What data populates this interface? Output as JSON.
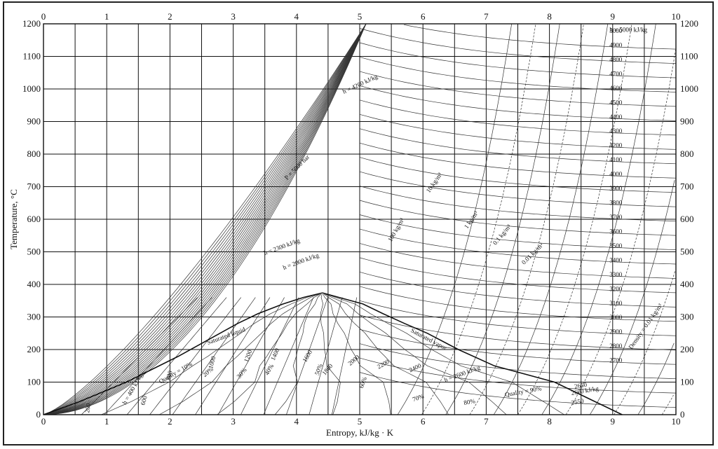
{
  "chart_data": {
    "type": "line",
    "title": "",
    "xlabel": "Entropy, kJ/kg · K",
    "ylabel": "Temperature, °C",
    "xlim": [
      0,
      10
    ],
    "ylim": [
      0,
      1200
    ],
    "x_ticks": [
      "0",
      "1",
      "2",
      "3",
      "4",
      "5",
      "6",
      "7",
      "8",
      "9",
      "10"
    ],
    "y_ticks": [
      "0",
      "100",
      "200",
      "300",
      "400",
      "500",
      "600",
      "700",
      "800",
      "900",
      "1000",
      "1100",
      "1200"
    ],
    "grid": true,
    "series": [
      {
        "name": "Saturated liquid",
        "x": [
          0.0,
          0.57,
          1.31,
          2.14,
          2.79,
          3.07,
          3.39,
          3.79,
          4.11,
          4.41
        ],
        "y": [
          0.01,
          40,
          100,
          180,
          250,
          280,
          310,
          340,
          360,
          374
        ]
      },
      {
        "name": "Saturated vapor",
        "x": [
          4.41,
          5.05,
          5.37,
          5.71,
          6.07,
          6.56,
          7.13,
          8.08,
          9.15
        ],
        "y": [
          374,
          340,
          310,
          280,
          250,
          200,
          150,
          100,
          0.01
        ]
      }
    ],
    "annotations": {
      "saturation": [
        "Saturated liquid",
        "Saturated vapor"
      ],
      "quality": [
        "Quality = 10%",
        "20%",
        "30%",
        "40%",
        "50%",
        "60%",
        "70%",
        "80%",
        "Quality = 90%"
      ],
      "enthalpy": [
        "h = 400 kJ/kg",
        "200",
        "600",
        "800",
        "1000",
        "1200",
        "1400",
        "1600",
        "1800",
        "2000",
        "2200",
        "2400",
        "h = 2600 kJ/kg",
        "2600 kJ/kg",
        "2650",
        "2550",
        "2700",
        "2800",
        "2900",
        "3000",
        "3100",
        "3200",
        "3300",
        "3400",
        "3500",
        "3600",
        "3700",
        "3800",
        "3900",
        "4000",
        "4100",
        "4200",
        "4300",
        "4400",
        "4500",
        "4600",
        "4700",
        "4800",
        "4900",
        "5000",
        "h = 5000 kJ/kg",
        "h = 4200 kJ/kg",
        "h = 2300 kJ/kg",
        "h = 2000 kJ/kg"
      ],
      "pressure": [
        "P = 5000 bar"
      ],
      "density": [
        "100 kg/m³",
        "10 kg/m³",
        "1 kg/m³",
        "0.1 kg/m³",
        "0.01 kg/m³",
        "Density = 0.01 kg/m³"
      ]
    },
    "x_ticks_top": [
      "0",
      "1",
      "2",
      "3",
      "4",
      "5",
      "6",
      "7",
      "8",
      "9",
      "10"
    ],
    "y_ticks_right": [
      "0",
      "100",
      "200",
      "300",
      "400",
      "500",
      "600",
      "700",
      "800",
      "900",
      "1000",
      "1100",
      "1200"
    ]
  }
}
